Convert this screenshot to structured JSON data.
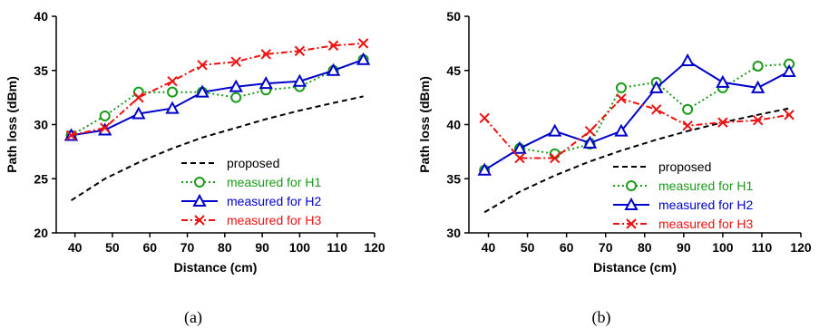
{
  "chart_data": [
    {
      "type": "line",
      "caption": "(a)",
      "xlabel": "Distance (cm)",
      "ylabel": "Path loss (dBm)",
      "xlim": [
        35,
        120
      ],
      "ylim": [
        20,
        40
      ],
      "xticks": [
        40,
        50,
        60,
        70,
        80,
        90,
        100,
        110,
        120
      ],
      "yticks": [
        20,
        25,
        30,
        35,
        40
      ],
      "legend_position": "bottom-right",
      "series": [
        {
          "name": "proposed",
          "color": "#000000",
          "style": "dashed",
          "marker": "none",
          "x": [
            39,
            48,
            57,
            66,
            74,
            83,
            91,
            100,
            109,
            117
          ],
          "y": [
            23.0,
            25.0,
            26.5,
            27.8,
            28.8,
            29.7,
            30.5,
            31.3,
            32.0,
            32.6
          ]
        },
        {
          "name": "measured for H1",
          "color": "#1a9a1a",
          "style": "dotted",
          "marker": "circle",
          "x": [
            39,
            48,
            57,
            66,
            74,
            83,
            91,
            100,
            109,
            117
          ],
          "y": [
            29.0,
            30.8,
            33.0,
            33.0,
            33.0,
            32.5,
            33.2,
            33.5,
            35.0,
            36.0
          ]
        },
        {
          "name": "measured for H2",
          "color": "#0000cc",
          "style": "solid",
          "marker": "triangle",
          "x": [
            39,
            48,
            57,
            66,
            74,
            83,
            91,
            100,
            109,
            117
          ],
          "y": [
            29.0,
            29.5,
            31.0,
            31.5,
            33.0,
            33.5,
            33.8,
            34.0,
            35.0,
            36.0
          ]
        },
        {
          "name": "measured for H3",
          "color": "#ee1111",
          "style": "dashdot",
          "marker": "x",
          "x": [
            39,
            48,
            57,
            66,
            74,
            83,
            91,
            100,
            109,
            117
          ],
          "y": [
            29.0,
            29.7,
            32.5,
            34.0,
            35.5,
            35.8,
            36.5,
            36.8,
            37.3,
            37.5
          ]
        }
      ]
    },
    {
      "type": "line",
      "caption": "(b)",
      "xlabel": "Distance (cm)",
      "ylabel": "Path loss (dBm)",
      "xlim": [
        35,
        120
      ],
      "ylim": [
        30,
        50
      ],
      "xticks": [
        40,
        50,
        60,
        70,
        80,
        90,
        100,
        110,
        120
      ],
      "yticks": [
        30,
        35,
        40,
        45,
        50
      ],
      "legend_position": "bottom-right",
      "series": [
        {
          "name": "proposed",
          "color": "#000000",
          "style": "dashed",
          "marker": "none",
          "x": [
            39,
            48,
            57,
            66,
            74,
            83,
            91,
            100,
            109,
            117
          ],
          "y": [
            31.9,
            33.8,
            35.3,
            36.6,
            37.6,
            38.6,
            39.4,
            40.2,
            40.9,
            41.5
          ]
        },
        {
          "name": "measured for H1",
          "color": "#1a9a1a",
          "style": "dotted",
          "marker": "circle",
          "x": [
            39,
            48,
            57,
            66,
            74,
            83,
            91,
            100,
            109,
            117
          ],
          "y": [
            35.8,
            37.8,
            37.3,
            38.2,
            43.4,
            43.9,
            41.4,
            43.4,
            45.4,
            45.6
          ]
        },
        {
          "name": "measured for H2",
          "color": "#0000cc",
          "style": "solid",
          "marker": "triangle",
          "x": [
            39,
            48,
            57,
            66,
            74,
            83,
            91,
            100,
            109,
            117
          ],
          "y": [
            35.8,
            37.8,
            39.4,
            38.3,
            39.4,
            43.4,
            45.9,
            43.9,
            43.4,
            44.9
          ]
        },
        {
          "name": "measured for H3",
          "color": "#ee1111",
          "style": "dashdot",
          "marker": "x",
          "x": [
            39,
            48,
            57,
            66,
            74,
            83,
            91,
            100,
            109,
            117
          ],
          "y": [
            40.6,
            36.9,
            36.9,
            39.4,
            42.4,
            41.4,
            39.9,
            40.2,
            40.4,
            40.9
          ]
        }
      ]
    }
  ]
}
